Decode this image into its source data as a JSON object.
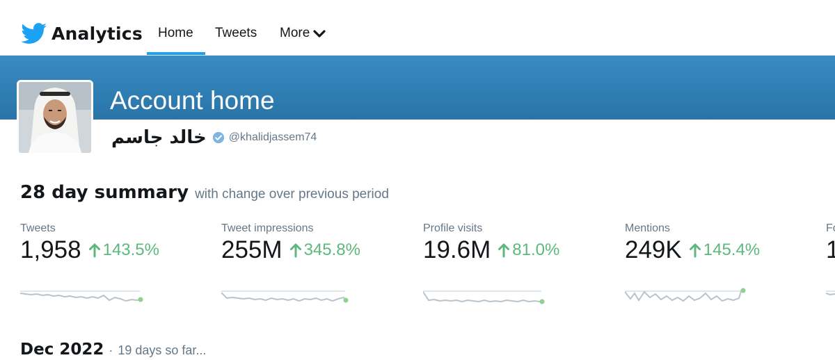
{
  "header": {
    "brand": "Analytics",
    "brand_icon": "twitter-bird-icon",
    "accent_color": "#1da1f2",
    "nav": {
      "home": "Home",
      "tweets": "Tweets",
      "more": "More"
    },
    "active_tab": "Home"
  },
  "account": {
    "page_title": "Account home",
    "display_name": "خالد جاسم",
    "handle": "@khalidjassem74",
    "verified": true
  },
  "summary": {
    "title": "28 day summary",
    "subtitle": "with change over previous period",
    "metrics": [
      {
        "label": "Tweets",
        "value": "1,958",
        "change": "143.5%",
        "trend": "up"
      },
      {
        "label": "Tweet impressions",
        "value": "255M",
        "change": "345.8%",
        "trend": "up"
      },
      {
        "label": "Profile visits",
        "value": "19.6M",
        "change": "81.0%",
        "trend": "up"
      },
      {
        "label": "Mentions",
        "value": "249K",
        "change": "145.4%",
        "trend": "up"
      },
      {
        "label": "Fo",
        "value": "1",
        "change": "",
        "trend": "up"
      }
    ],
    "change_color": "#5cb97b"
  },
  "period": {
    "title": "Dec 2022",
    "separator": "·",
    "subtitle": "19 days so far..."
  }
}
